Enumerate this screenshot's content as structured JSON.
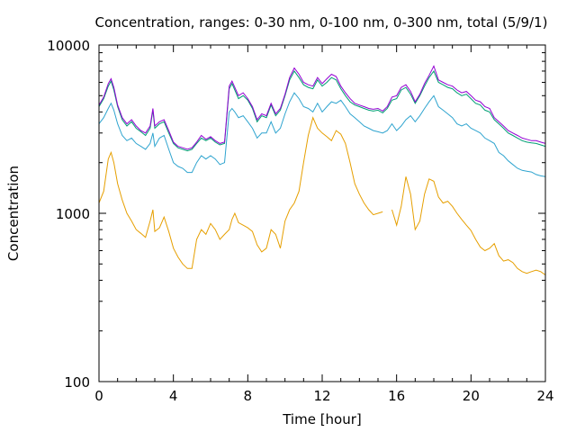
{
  "chart_data": {
    "type": "line",
    "title": "Concentration, ranges: 0-30 nm, 0-100 nm, 0-300 nm, total (5/9/1)",
    "xlabel": "Time [hour]",
    "ylabel": "Concentration",
    "xlim": [
      0,
      24
    ],
    "ylim": [
      100,
      10000
    ],
    "yscale": "log",
    "grid": false,
    "legend": "none",
    "x_ticks": [
      0,
      4,
      8,
      12,
      16,
      20,
      24
    ],
    "x_tick_labels": [
      "0",
      "4",
      "8",
      "12",
      "16",
      "20",
      "24"
    ],
    "y_ticks": [
      100,
      1000,
      10000
    ],
    "y_tick_labels": [
      "100",
      "1000",
      "10000"
    ],
    "x": [
      0,
      0.25,
      0.5,
      0.65,
      0.8,
      1.0,
      1.25,
      1.5,
      1.75,
      2.0,
      2.25,
      2.5,
      2.75,
      2.9,
      3.0,
      3.25,
      3.5,
      3.75,
      4.0,
      4.25,
      4.5,
      4.75,
      5.0,
      5.25,
      5.5,
      5.75,
      6.0,
      6.25,
      6.5,
      6.75,
      7.0,
      7.15,
      7.3,
      7.5,
      7.75,
      8.0,
      8.25,
      8.5,
      8.75,
      9.0,
      9.25,
      9.5,
      9.75,
      10.0,
      10.25,
      10.5,
      10.75,
      11.0,
      11.25,
      11.5,
      11.75,
      12.0,
      12.25,
      12.5,
      12.75,
      13.0,
      13.25,
      13.5,
      13.75,
      14.0,
      14.25,
      14.5,
      14.75,
      15.0,
      15.25,
      15.5,
      15.75,
      16.0,
      16.25,
      16.5,
      16.75,
      17.0,
      17.25,
      17.5,
      17.75,
      18.0,
      18.25,
      18.5,
      18.75,
      19.0,
      19.25,
      19.5,
      19.75,
      20.0,
      20.25,
      20.5,
      20.75,
      21.0,
      21.25,
      21.5,
      21.75,
      22.0,
      22.25,
      22.5,
      22.75,
      23.0,
      23.25,
      23.5,
      23.75,
      24.0
    ],
    "series_colors": [
      "#e69f00",
      "#2fa4cf",
      "#009e73",
      "#9400d3"
    ],
    "series": [
      {
        "values": [
          1150,
          1350,
          2100,
          2300,
          2000,
          1500,
          1200,
          1000,
          900,
          800,
          760,
          720,
          900,
          1050,
          780,
          820,
          950,
          780,
          620,
          550,
          500,
          470,
          470,
          700,
          800,
          750,
          870,
          800,
          700,
          750,
          800,
          920,
          1000,
          880,
          850,
          820,
          780,
          650,
          590,
          620,
          800,
          750,
          620,
          900,
          1050,
          1150,
          1350,
          2000,
          2900,
          3700,
          3200,
          3000,
          2850,
          2700,
          3100,
          2950,
          2600,
          2000,
          1500,
          1300,
          1150,
          1050,
          980,
          1000,
          1020,
          null,
          1050,
          850,
          1100,
          1650,
          1300,
          800,
          900,
          1300,
          1600,
          1550,
          1250,
          1150,
          1180,
          1100,
          1000,
          920,
          850,
          790,
          700,
          630,
          600,
          620,
          660,
          560,
          520,
          530,
          510,
          470,
          450,
          440,
          450,
          460,
          450,
          430
        ]
      },
      {
        "values": [
          3400,
          3700,
          4200,
          4500,
          4100,
          3400,
          2900,
          2700,
          2800,
          2600,
          2500,
          2400,
          2600,
          3000,
          2500,
          2800,
          2900,
          2400,
          2000,
          1900,
          1850,
          1750,
          1750,
          2000,
          2200,
          2100,
          2200,
          2100,
          1950,
          2000,
          4000,
          4200,
          4000,
          3700,
          3800,
          3500,
          3200,
          2800,
          3000,
          3000,
          3500,
          3000,
          3200,
          3900,
          4600,
          5200,
          4800,
          4300,
          4200,
          4000,
          4500,
          4000,
          4300,
          4600,
          4500,
          4700,
          4300,
          3900,
          3700,
          3500,
          3300,
          3200,
          3100,
          3050,
          3000,
          3100,
          3400,
          3100,
          3300,
          3600,
          3800,
          3500,
          3800,
          4200,
          4600,
          5000,
          4300,
          4100,
          3900,
          3700,
          3400,
          3300,
          3400,
          3200,
          3100,
          3000,
          2800,
          2700,
          2600,
          2300,
          2200,
          2050,
          1950,
          1850,
          1800,
          1780,
          1760,
          1700,
          1670,
          1650
        ]
      },
      {
        "values": [
          4300,
          4800,
          5700,
          6100,
          5400,
          4300,
          3600,
          3300,
          3500,
          3200,
          3050,
          2900,
          3200,
          4100,
          3200,
          3400,
          3500,
          3000,
          2600,
          2450,
          2400,
          2350,
          2400,
          2600,
          2800,
          2700,
          2800,
          2650,
          2550,
          2600,
          5500,
          5900,
          5400,
          4800,
          5000,
          4700,
          4200,
          3500,
          3800,
          3700,
          4400,
          3800,
          4100,
          5000,
          6200,
          7000,
          6400,
          5800,
          5600,
          5500,
          6200,
          5700,
          6000,
          6400,
          6200,
          5500,
          5000,
          4600,
          4400,
          4300,
          4200,
          4100,
          4050,
          4100,
          3950,
          4200,
          4700,
          4800,
          5400,
          5600,
          5100,
          4500,
          5000,
          5700,
          6400,
          7000,
          6000,
          5800,
          5600,
          5500,
          5200,
          5000,
          5100,
          4800,
          4500,
          4400,
          4100,
          4000,
          3600,
          3400,
          3200,
          3000,
          2900,
          2800,
          2700,
          2650,
          2620,
          2600,
          2550,
          2500
        ]
      },
      {
        "values": [
          4400,
          4900,
          5900,
          6300,
          5600,
          4400,
          3700,
          3400,
          3600,
          3300,
          3100,
          3000,
          3300,
          4200,
          3300,
          3500,
          3600,
          3100,
          2650,
          2500,
          2450,
          2400,
          2450,
          2650,
          2900,
          2750,
          2850,
          2700,
          2600,
          2650,
          5700,
          6100,
          5600,
          5000,
          5200,
          4800,
          4300,
          3600,
          3900,
          3800,
          4500,
          3900,
          4200,
          5100,
          6400,
          7300,
          6700,
          6000,
          5800,
          5700,
          6400,
          5900,
          6300,
          6700,
          6500,
          5700,
          5200,
          4800,
          4500,
          4400,
          4300,
          4200,
          4150,
          4200,
          4050,
          4300,
          4900,
          5000,
          5600,
          5800,
          5300,
          4600,
          5100,
          5900,
          6600,
          7500,
          6200,
          6000,
          5800,
          5700,
          5400,
          5200,
          5300,
          5000,
          4700,
          4600,
          4300,
          4200,
          3700,
          3500,
          3300,
          3100,
          3000,
          2900,
          2800,
          2750,
          2700,
          2700,
          2650,
          2600
        ]
      }
    ]
  }
}
